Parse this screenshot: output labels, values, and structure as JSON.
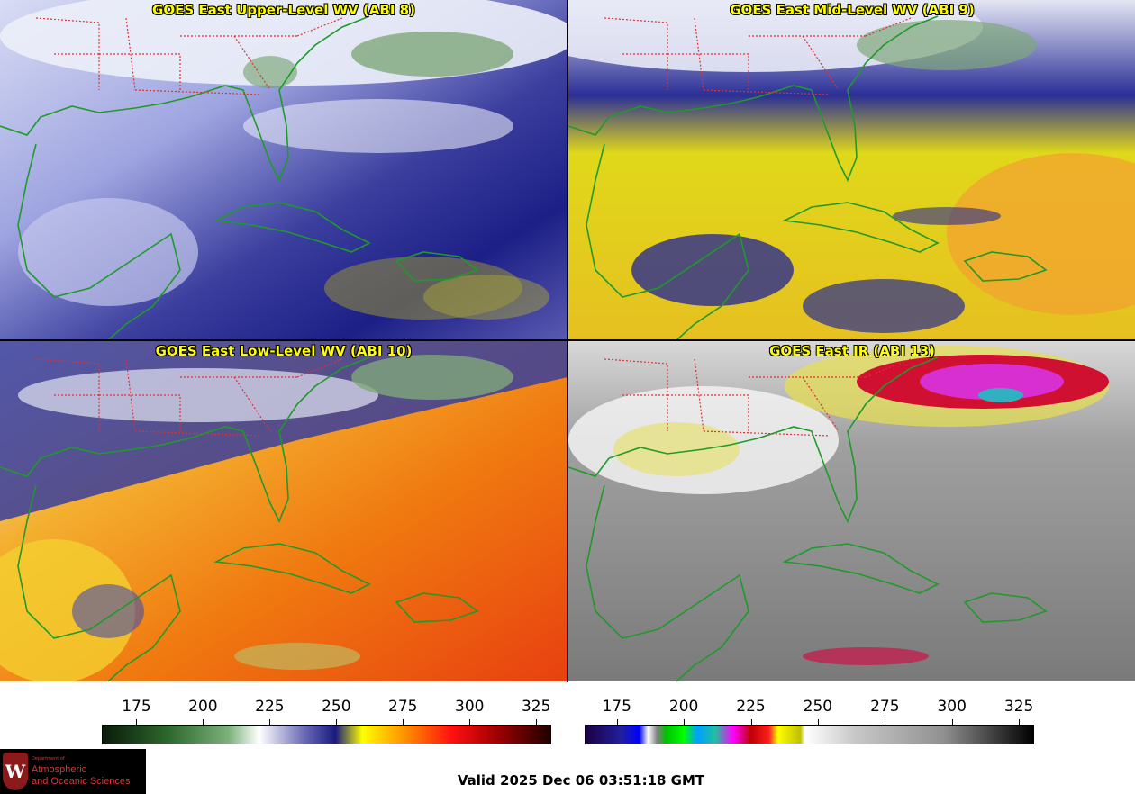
{
  "panels": [
    {
      "title": "GOES East Upper-Level WV (ABI 8)",
      "scheme": "wv_upper"
    },
    {
      "title": "GOES East Mid-Level WV (ABI 9)",
      "scheme": "wv_mid"
    },
    {
      "title": "GOES East Low-Level WV (ABI 10)",
      "scheme": "wv_low"
    },
    {
      "title": "GOES East IR (ABI 13)",
      "scheme": "ir"
    }
  ],
  "colorbars": {
    "wv": {
      "ticks": [
        "175",
        "200",
        "225",
        "250",
        "275",
        "300",
        "325"
      ],
      "range": [
        162,
        330
      ]
    },
    "ir": {
      "ticks": [
        "175",
        "200",
        "225",
        "250",
        "275",
        "300",
        "325"
      ],
      "range": [
        163,
        330
      ]
    }
  },
  "valid_time": "Valid 2025 Dec 06 03:51:18 GMT",
  "logo": {
    "department": "Department of",
    "line1": "Atmospheric",
    "line2": "and Oceanic Sciences",
    "crest_letter": "W"
  },
  "colors": {
    "coast": "#1f9a2a",
    "state_border": "#e03030",
    "title": "#ffff00"
  }
}
